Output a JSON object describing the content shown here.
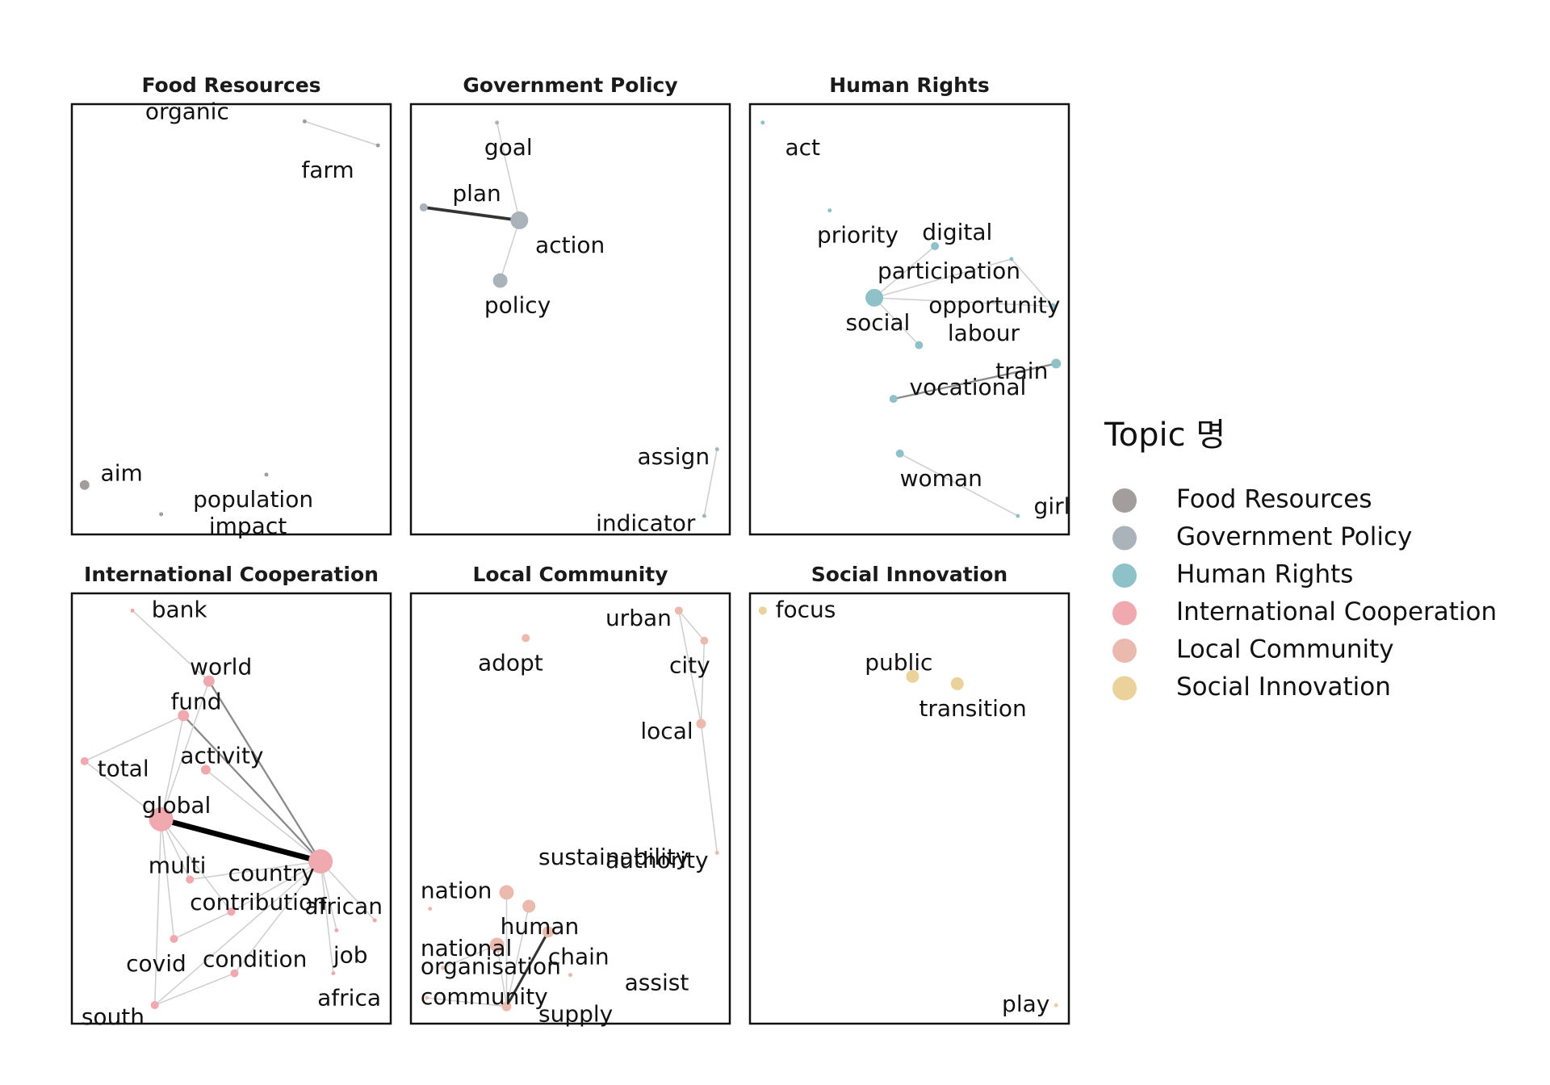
{
  "chart_data": {
    "type": "network",
    "legend": {
      "title": "Topic 명",
      "placement": "right",
      "entries": [
        {
          "name": "Food Resources",
          "color": "#a39d9d"
        },
        {
          "name": "Government Policy",
          "color": "#aab2ba"
        },
        {
          "name": "Human Rights",
          "color": "#8ec2c8"
        },
        {
          "name": "International Cooperation",
          "color": "#f0a9ae"
        },
        {
          "name": "Local Community",
          "color": "#ebbaae"
        },
        {
          "name": "Social Innovation",
          "color": "#ead29a"
        }
      ]
    },
    "facets": [
      {
        "title": "Food Resources",
        "color": "#a39d9d",
        "nodes": [
          {
            "word": "organic",
            "x": 0.73,
            "y": 0.04,
            "size": 2,
            "lx": -0.5,
            "ly": -0.02
          },
          {
            "word": "farm",
            "x": 0.96,
            "y": 0.096,
            "size": 2,
            "lx": -0.24,
            "ly": 0.06
          },
          {
            "word": "aim",
            "x": 0.04,
            "y": 0.885,
            "size": 6,
            "lx": 0.05,
            "ly": -0.025
          },
          {
            "word": "population",
            "x": 0.61,
            "y": 0.861,
            "size": 2,
            "lx": -0.23,
            "ly": 0.06
          },
          {
            "word": "impact",
            "x": 0.28,
            "y": 0.953,
            "size": 2,
            "lx": 0.15,
            "ly": 0.03
          }
        ],
        "edges": [
          {
            "source": "organic",
            "target": "farm",
            "weight": 1
          }
        ]
      },
      {
        "title": "Government Policy",
        "color": "#aab2ba",
        "nodes": [
          {
            "word": "goal",
            "x": 0.27,
            "y": 0.043,
            "size": 2,
            "lx": -0.04,
            "ly": 0.06
          },
          {
            "word": "plan",
            "x": 0.04,
            "y": 0.24,
            "size": 5,
            "lx": 0.09,
            "ly": -0.03
          },
          {
            "word": "action",
            "x": 0.34,
            "y": 0.27,
            "size": 11,
            "lx": 0.05,
            "ly": 0.06
          },
          {
            "word": "policy",
            "x": 0.28,
            "y": 0.41,
            "size": 9,
            "lx": -0.05,
            "ly": 0.06
          },
          {
            "word": "assign",
            "x": 0.96,
            "y": 0.802,
            "size": 2,
            "lx": -0.25,
            "ly": 0.02
          },
          {
            "word": "indicator",
            "x": 0.92,
            "y": 0.957,
            "size": 2,
            "lx": -0.34,
            "ly": 0.02
          }
        ],
        "edges": [
          {
            "source": "goal",
            "target": "action",
            "weight": 1
          },
          {
            "source": "plan",
            "target": "action",
            "weight": 4
          },
          {
            "source": "action",
            "target": "policy",
            "weight": 1
          },
          {
            "source": "assign",
            "target": "indicator",
            "weight": 1
          }
        ]
      },
      {
        "title": "Human Rights",
        "color": "#8ec2c8",
        "nodes": [
          {
            "word": "act",
            "x": 0.04,
            "y": 0.043,
            "size": 2,
            "lx": 0.07,
            "ly": 0.06
          },
          {
            "word": "priority",
            "x": 0.25,
            "y": 0.247,
            "size": 2,
            "lx": -0.04,
            "ly": 0.06
          },
          {
            "word": "digital",
            "x": 0.58,
            "y": 0.33,
            "size": 5,
            "lx": -0.04,
            "ly": -0.03
          },
          {
            "word": "participation",
            "x": 0.82,
            "y": 0.36,
            "size": 2,
            "lx": -0.42,
            "ly": 0.03
          },
          {
            "word": "social",
            "x": 0.39,
            "y": 0.45,
            "size": 11,
            "lx": -0.09,
            "ly": 0.06
          },
          {
            "word": "opportunity",
            "x": 0.95,
            "y": 0.47,
            "size": 4,
            "lx": -0.39,
            "ly": 0.0
          },
          {
            "word": "labour",
            "x": 0.53,
            "y": 0.56,
            "size": 5,
            "lx": 0.09,
            "ly": -0.025
          },
          {
            "word": "train",
            "x": 0.96,
            "y": 0.603,
            "size": 6,
            "lx": -0.19,
            "ly": 0.02
          },
          {
            "word": "vocational",
            "x": 0.45,
            "y": 0.685,
            "size": 5,
            "lx": 0.05,
            "ly": -0.025
          },
          {
            "word": "woman",
            "x": 0.47,
            "y": 0.812,
            "size": 5,
            "lx": 0.0,
            "ly": 0.06
          },
          {
            "word": "girl",
            "x": 0.84,
            "y": 0.957,
            "size": 2,
            "lx": 0.05,
            "ly": -0.02
          }
        ],
        "edges": [
          {
            "source": "social",
            "target": "digital",
            "weight": 1
          },
          {
            "source": "social",
            "target": "participation",
            "weight": 1
          },
          {
            "source": "social",
            "target": "opportunity",
            "weight": 1
          },
          {
            "source": "social",
            "target": "labour",
            "weight": 1
          },
          {
            "source": "opportunity",
            "target": "participation",
            "weight": 1
          },
          {
            "source": "vocational",
            "target": "train",
            "weight": 2
          },
          {
            "source": "woman",
            "target": "girl",
            "weight": 1
          }
        ]
      },
      {
        "title": "International Cooperation",
        "color": "#f0a9ae",
        "nodes": [
          {
            "word": "bank",
            "x": 0.19,
            "y": 0.04,
            "size": 2,
            "lx": 0.06,
            "ly": 0.0
          },
          {
            "word": "world",
            "x": 0.43,
            "y": 0.204,
            "size": 7,
            "lx": -0.06,
            "ly": -0.03
          },
          {
            "word": "fund",
            "x": 0.35,
            "y": 0.284,
            "size": 7,
            "lx": -0.04,
            "ly": -0.03
          },
          {
            "word": "total",
            "x": 0.04,
            "y": 0.39,
            "size": 5,
            "lx": 0.04,
            "ly": 0.02
          },
          {
            "word": "activity",
            "x": 0.42,
            "y": 0.41,
            "size": 6,
            "lx": -0.08,
            "ly": -0.03
          },
          {
            "word": "global",
            "x": 0.28,
            "y": 0.525,
            "size": 15,
            "lx": -0.06,
            "ly": -0.03
          },
          {
            "word": "country",
            "x": 0.78,
            "y": 0.623,
            "size": 15,
            "lx": -0.29,
            "ly": 0.03
          },
          {
            "word": "multi",
            "x": 0.37,
            "y": 0.665,
            "size": 5,
            "lx": -0.13,
            "ly": -0.03
          },
          {
            "word": "contribution",
            "x": 0.5,
            "y": 0.74,
            "size": 5,
            "lx": -0.13,
            "ly": -0.02
          },
          {
            "word": "african",
            "x": 0.95,
            "y": 0.76,
            "size": 2,
            "lx": -0.22,
            "ly": -0.03
          },
          {
            "word": "job",
            "x": 0.83,
            "y": 0.783,
            "size": 2,
            "lx": -0.01,
            "ly": 0.06
          },
          {
            "word": "covid",
            "x": 0.32,
            "y": 0.803,
            "size": 5,
            "lx": -0.15,
            "ly": 0.06
          },
          {
            "word": "condition",
            "x": 0.51,
            "y": 0.883,
            "size": 5,
            "lx": -0.1,
            "ly": -0.03
          },
          {
            "word": "africa",
            "x": 0.82,
            "y": 0.883,
            "size": 2,
            "lx": -0.05,
            "ly": 0.06
          },
          {
            "word": "south",
            "x": 0.26,
            "y": 0.957,
            "size": 5,
            "lx": -0.23,
            "ly": 0.03
          }
        ],
        "edges": [
          {
            "source": "global",
            "target": "country",
            "weight": 8
          },
          {
            "source": "world",
            "target": "country",
            "weight": 2
          },
          {
            "source": "fund",
            "target": "country",
            "weight": 2
          },
          {
            "source": "world",
            "target": "global",
            "weight": 1
          },
          {
            "source": "fund",
            "target": "global",
            "weight": 1
          },
          {
            "source": "activity",
            "target": "country",
            "weight": 1
          },
          {
            "source": "bank",
            "target": "world",
            "weight": 1
          },
          {
            "source": "total",
            "target": "fund",
            "weight": 1
          },
          {
            "source": "total",
            "target": "global",
            "weight": 1
          },
          {
            "source": "global",
            "target": "multi",
            "weight": 1
          },
          {
            "source": "global",
            "target": "contribution",
            "weight": 1
          },
          {
            "source": "global",
            "target": "covid",
            "weight": 1
          },
          {
            "source": "global",
            "target": "south",
            "weight": 1
          },
          {
            "source": "country",
            "target": "multi",
            "weight": 1
          },
          {
            "source": "country",
            "target": "contribution",
            "weight": 1
          },
          {
            "source": "country",
            "target": "african",
            "weight": 1
          },
          {
            "source": "country",
            "target": "job",
            "weight": 1
          },
          {
            "source": "country",
            "target": "condition",
            "weight": 1
          },
          {
            "source": "country",
            "target": "africa",
            "weight": 1
          },
          {
            "source": "country",
            "target": "south",
            "weight": 1
          },
          {
            "source": "covid",
            "target": "contribution",
            "weight": 1
          },
          {
            "source": "south",
            "target": "condition",
            "weight": 1
          }
        ]
      },
      {
        "title": "Local Community",
        "color": "#ebbaae",
        "nodes": [
          {
            "word": "urban",
            "x": 0.84,
            "y": 0.04,
            "size": 5,
            "lx": -0.23,
            "ly": 0.02
          },
          {
            "word": "adopt",
            "x": 0.36,
            "y": 0.104,
            "size": 5,
            "lx": -0.15,
            "ly": 0.06
          },
          {
            "word": "city",
            "x": 0.92,
            "y": 0.11,
            "size": 5,
            "lx": -0.11,
            "ly": 0.06
          },
          {
            "word": "local",
            "x": 0.91,
            "y": 0.303,
            "size": 6,
            "lx": -0.19,
            "ly": 0.02
          },
          {
            "word": "authority",
            "x": 0.96,
            "y": 0.603,
            "size": 2,
            "lx": -0.35,
            "ly": 0.02
          },
          {
            "word": "sustainability",
            "x": 0.3,
            "y": 0.695,
            "size": 9,
            "lx": 0.1,
            "ly": -0.08
          },
          {
            "word": "nation",
            "x": 0.06,
            "y": 0.733,
            "size": 2,
            "lx": -0.03,
            "ly": -0.04
          },
          {
            "word": "human",
            "x": 0.37,
            "y": 0.727,
            "size": 8,
            "lx": -0.09,
            "ly": 0.05
          },
          {
            "word": "national",
            "x": 0.27,
            "y": 0.817,
            "size": 9,
            "lx": -0.24,
            "ly": 0.01
          },
          {
            "word": "chain",
            "x": 0.43,
            "y": 0.787,
            "size": 7,
            "lx": 0.0,
            "ly": 0.06
          },
          {
            "word": "organisation",
            "x": 0.1,
            "y": 0.87,
            "size": 2,
            "lx": -0.07,
            "ly": 0.0
          },
          {
            "word": "assist",
            "x": 0.5,
            "y": 0.887,
            "size": 2,
            "lx": 0.17,
            "ly": 0.02
          },
          {
            "word": "community",
            "x": 0.05,
            "y": 0.94,
            "size": 2,
            "lx": -0.02,
            "ly": 0.0
          },
          {
            "word": "supply",
            "x": 0.3,
            "y": 0.96,
            "size": 6,
            "lx": 0.1,
            "ly": 0.02
          }
        ],
        "edges": [
          {
            "source": "urban",
            "target": "city",
            "weight": 1
          },
          {
            "source": "urban",
            "target": "local",
            "weight": 1
          },
          {
            "source": "city",
            "target": "local",
            "weight": 1
          },
          {
            "source": "local",
            "target": "authority",
            "weight": 1
          },
          {
            "source": "chain",
            "target": "supply",
            "weight": 3
          },
          {
            "source": "community",
            "target": "supply",
            "weight": 1
          },
          {
            "source": "sustainability",
            "target": "supply",
            "weight": 1
          },
          {
            "source": "national",
            "target": "supply",
            "weight": 1
          },
          {
            "source": "human",
            "target": "supply",
            "weight": 1
          },
          {
            "source": "national",
            "target": "organisation",
            "weight": 1
          }
        ]
      },
      {
        "title": "Social Innovation",
        "color": "#ead29a",
        "nodes": [
          {
            "word": "focus",
            "x": 0.04,
            "y": 0.04,
            "size": 5,
            "lx": 0.04,
            "ly": 0.0
          },
          {
            "word": "public",
            "x": 0.51,
            "y": 0.193,
            "size": 8,
            "lx": -0.15,
            "ly": -0.03
          },
          {
            "word": "transition",
            "x": 0.65,
            "y": 0.21,
            "size": 8,
            "lx": -0.12,
            "ly": 0.06
          },
          {
            "word": "play",
            "x": 0.96,
            "y": 0.957,
            "size": 2,
            "lx": -0.17,
            "ly": 0.0
          }
        ],
        "edges": []
      }
    ]
  }
}
